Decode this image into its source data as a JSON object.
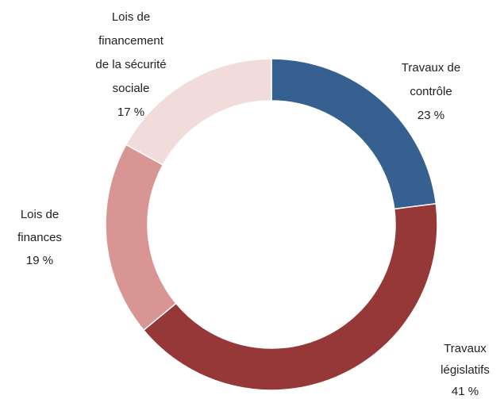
{
  "chart_data": {
    "type": "donut",
    "categories": [
      "Travaux de contrôle",
      "Travaux législatifs",
      "Lois de finances",
      "Lois de financement de la sécurité sociale"
    ],
    "values": [
      23,
      41,
      19,
      17
    ],
    "value_labels": [
      "23 %",
      "41 %",
      "19 %",
      "17 %"
    ],
    "colors": [
      "#35608f",
      "#963837",
      "#d99594",
      "#f2dcdb"
    ]
  }
}
